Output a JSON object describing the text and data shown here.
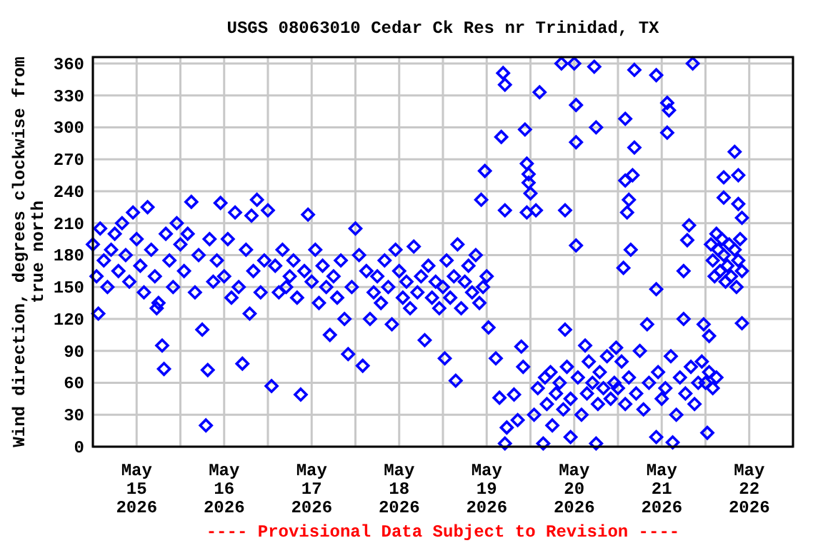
{
  "chart_data": {
    "type": "scatter",
    "title": "USGS 08063010 Cedar Ck Res nr Trinidad, TX",
    "ylabel": "Wind direction, degrees clockwise from true north",
    "annotations": [
      "---- Provisional Data Subject to Revision ----"
    ],
    "marker": "diamond",
    "grid": true,
    "xlim": [
      "2026-05-15T00:00",
      "2026-05-23T00:00"
    ],
    "xticks": [
      {
        "value": "2026-05-15T00:00",
        "label": null
      },
      {
        "value": "2026-05-15T12:00",
        "label": "May 15 2026"
      },
      {
        "value": "2026-05-16T00:00",
        "label": null
      },
      {
        "value": "2026-05-16T12:00",
        "label": "May 16 2026"
      },
      {
        "value": "2026-05-17T00:00",
        "label": null
      },
      {
        "value": "2026-05-17T12:00",
        "label": "May 17 2026"
      },
      {
        "value": "2026-05-18T00:00",
        "label": null
      },
      {
        "value": "2026-05-18T12:00",
        "label": "May 18 2026"
      },
      {
        "value": "2026-05-19T00:00",
        "label": null
      },
      {
        "value": "2026-05-19T12:00",
        "label": "May 19 2026"
      },
      {
        "value": "2026-05-20T00:00",
        "label": null
      },
      {
        "value": "2026-05-20T12:00",
        "label": "May 20 2026"
      },
      {
        "value": "2026-05-21T00:00",
        "label": null
      },
      {
        "value": "2026-05-21T12:00",
        "label": "May 21 2026"
      },
      {
        "value": "2026-05-22T00:00",
        "label": null
      },
      {
        "value": "2026-05-22T12:00",
        "label": "May 22 2026"
      },
      {
        "value": "2026-05-23T00:00",
        "label": null
      }
    ],
    "ylim": [
      0,
      366
    ],
    "yticks": [
      0,
      30,
      60,
      90,
      120,
      150,
      180,
      210,
      240,
      270,
      300,
      330,
      360
    ],
    "series": [
      {
        "color": "#0000ff",
        "x": [
          "2026-05-15T00:00",
          "2026-05-15T01:00",
          "2026-05-15T01:30",
          "2026-05-15T02:00",
          "2026-05-15T03:00",
          "2026-05-15T04:00",
          "2026-05-15T05:00",
          "2026-05-15T06:00",
          "2026-05-15T07:00",
          "2026-05-15T08:00",
          "2026-05-15T09:00",
          "2026-05-15T10:00",
          "2026-05-15T11:00",
          "2026-05-15T12:00",
          "2026-05-15T13:00",
          "2026-05-15T14:00",
          "2026-05-15T15:00",
          "2026-05-15T16:00",
          "2026-05-15T17:00",
          "2026-05-15T17:30",
          "2026-05-15T18:00",
          "2026-05-15T19:00",
          "2026-05-15T19:30",
          "2026-05-15T20:00",
          "2026-05-15T21:00",
          "2026-05-15T22:00",
          "2026-05-15T23:00",
          "2026-05-16T00:00",
          "2026-05-16T01:00",
          "2026-05-16T02:00",
          "2026-05-16T03:00",
          "2026-05-16T04:00",
          "2026-05-16T05:00",
          "2026-05-16T06:00",
          "2026-05-16T07:00",
          "2026-05-16T07:30",
          "2026-05-16T08:00",
          "2026-05-16T09:00",
          "2026-05-16T10:00",
          "2026-05-16T11:00",
          "2026-05-16T12:00",
          "2026-05-16T13:00",
          "2026-05-16T14:00",
          "2026-05-16T15:00",
          "2026-05-16T16:00",
          "2026-05-16T17:00",
          "2026-05-16T18:00",
          "2026-05-16T19:00",
          "2026-05-16T19:30",
          "2026-05-16T20:00",
          "2026-05-16T21:00",
          "2026-05-16T22:00",
          "2026-05-16T23:00",
          "2026-05-17T00:00",
          "2026-05-17T01:00",
          "2026-05-17T02:00",
          "2026-05-17T03:00",
          "2026-05-17T04:00",
          "2026-05-17T05:00",
          "2026-05-17T06:00",
          "2026-05-17T07:00",
          "2026-05-17T08:00",
          "2026-05-17T09:00",
          "2026-05-17T10:00",
          "2026-05-17T11:00",
          "2026-05-17T12:00",
          "2026-05-17T13:00",
          "2026-05-17T14:00",
          "2026-05-17T15:00",
          "2026-05-17T16:00",
          "2026-05-17T17:00",
          "2026-05-17T18:00",
          "2026-05-17T19:00",
          "2026-05-17T20:00",
          "2026-05-17T21:00",
          "2026-05-17T22:00",
          "2026-05-17T23:00",
          "2026-05-18T00:00",
          "2026-05-18T01:00",
          "2026-05-18T02:00",
          "2026-05-18T03:00",
          "2026-05-18T04:00",
          "2026-05-18T05:00",
          "2026-05-18T06:00",
          "2026-05-18T07:00",
          "2026-05-18T08:00",
          "2026-05-18T09:00",
          "2026-05-18T10:00",
          "2026-05-18T11:00",
          "2026-05-18T12:00",
          "2026-05-18T13:00",
          "2026-05-18T14:00",
          "2026-05-18T15:00",
          "2026-05-18T16:00",
          "2026-05-18T17:00",
          "2026-05-18T18:00",
          "2026-05-18T19:00",
          "2026-05-18T20:00",
          "2026-05-18T21:00",
          "2026-05-18T22:00",
          "2026-05-18T23:00",
          "2026-05-19T00:00",
          "2026-05-19T00:30",
          "2026-05-19T01:00",
          "2026-05-19T02:00",
          "2026-05-19T03:00",
          "2026-05-19T03:30",
          "2026-05-19T04:00",
          "2026-05-19T05:00",
          "2026-05-19T06:00",
          "2026-05-19T07:00",
          "2026-05-19T08:00",
          "2026-05-19T09:00",
          "2026-05-19T10:00",
          "2026-05-19T10:30",
          "2026-05-19T11:00",
          "2026-05-19T11:30",
          "2026-05-19T12:00",
          "2026-05-19T12:30",
          "2026-05-19T14:30",
          "2026-05-19T15:30",
          "2026-05-19T16:00",
          "2026-05-19T16:30",
          "2026-05-19T17:00",
          "2026-05-19T17:00",
          "2026-05-19T17:00",
          "2026-05-19T17:30",
          "2026-05-19T19:30",
          "2026-05-19T20:30",
          "2026-05-19T21:30",
          "2026-05-19T22:00",
          "2026-05-19T22:30",
          "2026-05-19T23:00",
          "2026-05-19T23:00",
          "2026-05-19T23:30",
          "2026-05-19T23:30",
          "2026-05-20T00:00",
          "2026-05-20T01:00",
          "2026-05-20T01:30",
          "2026-05-20T02:00",
          "2026-05-20T02:30",
          "2026-05-20T03:30",
          "2026-05-20T04:00",
          "2026-05-20T04:30",
          "2026-05-20T05:30",
          "2026-05-20T06:00",
          "2026-05-20T07:00",
          "2026-05-20T08:00",
          "2026-05-20T08:30",
          "2026-05-20T09:00",
          "2026-05-20T09:30",
          "2026-05-20T09:30",
          "2026-05-20T10:00",
          "2026-05-20T11:00",
          "2026-05-20T11:00",
          "2026-05-20T12:00",
          "2026-05-20T12:30",
          "2026-05-20T12:30",
          "2026-05-20T12:30",
          "2026-05-20T13:00",
          "2026-05-20T14:00",
          "2026-05-20T15:00",
          "2026-05-20T15:30",
          "2026-05-20T16:00",
          "2026-05-20T17:00",
          "2026-05-20T17:30",
          "2026-05-20T18:00",
          "2026-05-20T18:00",
          "2026-05-20T18:30",
          "2026-05-20T19:00",
          "2026-05-20T20:00",
          "2026-05-20T21:00",
          "2026-05-20T22:00",
          "2026-05-20T23:00",
          "2026-05-20T23:30",
          "2026-05-21T00:00",
          "2026-05-21T01:00",
          "2026-05-21T01:30",
          "2026-05-21T02:00",
          "2026-05-21T02:00",
          "2026-05-21T02:00",
          "2026-05-21T02:30",
          "2026-05-21T03:00",
          "2026-05-21T03:00",
          "2026-05-21T03:30",
          "2026-05-21T04:00",
          "2026-05-21T04:30",
          "2026-05-21T04:30",
          "2026-05-21T05:00",
          "2026-05-21T06:00",
          "2026-05-21T07:00",
          "2026-05-21T08:00",
          "2026-05-21T08:30",
          "2026-05-21T10:30",
          "2026-05-21T10:30",
          "2026-05-21T10:30",
          "2026-05-21T11:00",
          "2026-05-21T12:00",
          "2026-05-21T13:00",
          "2026-05-21T13:30",
          "2026-05-21T13:30",
          "2026-05-21T14:00",
          "2026-05-21T14:30",
          "2026-05-21T15:00",
          "2026-05-21T16:00",
          "2026-05-21T17:00",
          "2026-05-21T18:00",
          "2026-05-21T18:00",
          "2026-05-21T18:30",
          "2026-05-21T19:00",
          "2026-05-21T19:30",
          "2026-05-21T20:00",
          "2026-05-21T20:30",
          "2026-05-21T21:00",
          "2026-05-21T22:00",
          "2026-05-21T23:00",
          "2026-05-21T23:30",
          "2026-05-22T00:00",
          "2026-05-22T00:30",
          "2026-05-22T01:00",
          "2026-05-22T01:00",
          "2026-05-22T01:30",
          "2026-05-22T02:00",
          "2026-05-22T02:00",
          "2026-05-22T02:30",
          "2026-05-22T03:00",
          "2026-05-22T03:00",
          "2026-05-22T03:30",
          "2026-05-22T04:00",
          "2026-05-22T04:30",
          "2026-05-22T05:00",
          "2026-05-22T05:00",
          "2026-05-22T05:00",
          "2026-05-22T05:30",
          "2026-05-22T06:00",
          "2026-05-22T06:30",
          "2026-05-22T07:00",
          "2026-05-22T08:00",
          "2026-05-22T08:00",
          "2026-05-22T08:30",
          "2026-05-22T09:00",
          "2026-05-22T09:00",
          "2026-05-22T09:00",
          "2026-05-22T09:30",
          "2026-05-22T10:00",
          "2026-05-22T10:00",
          "2026-05-22T10:00"
        ],
        "values": [
          190,
          160,
          125,
          205,
          175,
          150,
          185,
          200,
          165,
          210,
          180,
          155,
          220,
          195,
          170,
          145,
          225,
          185,
          160,
          130,
          135,
          95,
          73,
          200,
          175,
          150,
          210,
          190,
          165,
          200,
          230,
          145,
          180,
          110,
          20,
          72,
          195,
          155,
          175,
          229,
          160,
          195,
          140,
          220,
          150,
          78,
          185,
          125,
          217,
          165,
          232,
          145,
          175,
          222,
          57,
          170,
          145,
          185,
          150,
          160,
          175,
          140,
          49,
          165,
          218,
          155,
          185,
          135,
          170,
          150,
          105,
          160,
          140,
          175,
          120,
          87,
          150,
          205,
          180,
          76,
          165,
          120,
          145,
          160,
          135,
          175,
          150,
          115,
          185,
          165,
          140,
          155,
          130,
          188,
          145,
          160,
          100,
          170,
          140,
          155,
          130,
          150,
          83,
          175,
          140,
          160,
          62,
          190,
          130,
          155,
          170,
          145,
          180,
          135,
          232,
          150,
          259,
          160,
          112,
          83,
          46,
          291,
          351,
          340,
          3,
          222,
          18,
          49,
          25,
          94,
          75,
          298,
          220,
          266,
          248,
          256,
          238,
          30,
          222,
          55,
          333,
          3,
          65,
          40,
          70,
          20,
          50,
          60,
          360,
          35,
          222,
          110,
          75,
          45,
          9,
          360,
          321,
          189,
          286,
          65,
          30,
          95,
          50,
          80,
          60,
          357,
          300,
          3,
          40,
          70,
          55,
          85,
          45,
          60,
          93,
          55,
          80,
          168,
          308,
          250,
          40,
          220,
          232,
          65,
          185,
          255,
          354,
          281,
          50,
          90,
          35,
          115,
          60,
          9,
          148,
          349,
          70,
          45,
          55,
          323,
          295,
          316,
          85,
          4,
          30,
          65,
          165,
          120,
          50,
          194,
          208,
          75,
          360,
          40,
          60,
          80,
          115,
          60,
          13,
          104,
          70,
          190,
          175,
          55,
          160,
          200,
          65,
          185,
          165,
          195,
          180,
          253,
          234,
          155,
          170,
          190,
          160,
          185,
          277,
          150,
          175,
          255,
          228,
          195,
          165,
          215,
          116
        ]
      }
    ]
  }
}
